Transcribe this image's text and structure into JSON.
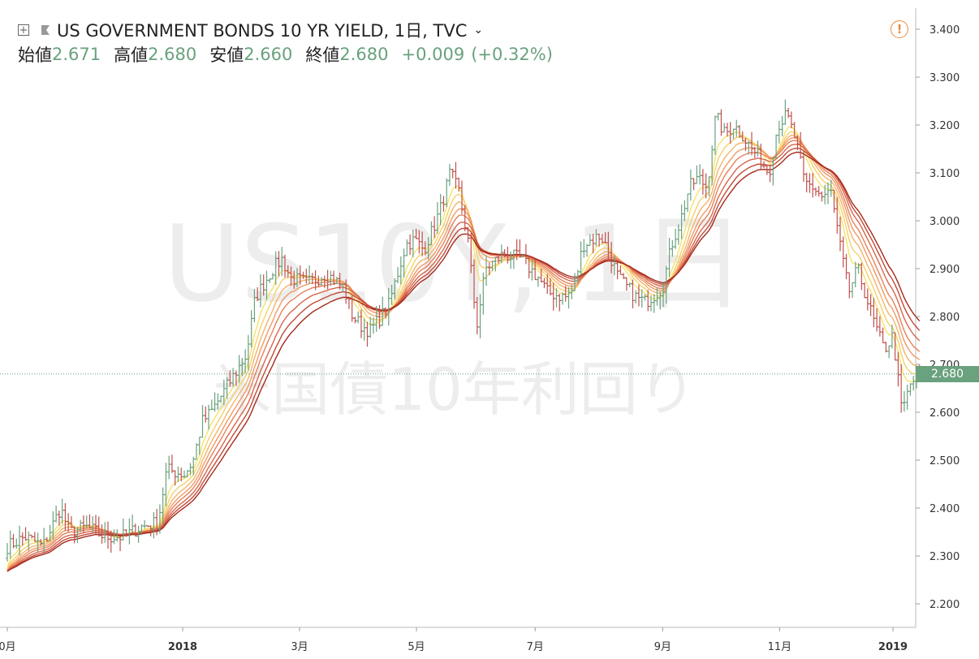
{
  "header": {
    "title": "US GOVERNMENT BONDS 10 YR YIELD, 1日, TVC",
    "open_label": "始値",
    "open_value": "2.671",
    "high_label": "高値",
    "high_value": "2.680",
    "low_label": "安値",
    "low_value": "2.660",
    "close_label": "終値",
    "close_value": "2.680",
    "change": "+0.009",
    "change_pct": "(+0.32%)"
  },
  "watermark": {
    "symbol": "US10Y, 1日",
    "name": "米国債10年利回り"
  },
  "last_price_badge": "2.680",
  "colors": {
    "up": "#6aa17e",
    "down": "#c0504d",
    "ribbon_light": "#f5e36a",
    "ribbon_dark": "#a52a1a"
  },
  "icons": [
    "expand-icon",
    "flag-icon",
    "chevron-down-icon",
    "warning-icon"
  ],
  "chart_data": {
    "type": "line",
    "title": "US GOVERNMENT BONDS 10 YR YIELD, 1日, TVC",
    "xlabel": "",
    "ylabel": "",
    "ylim": [
      2.175,
      3.43
    ],
    "y_ticks": [
      "3.400",
      "3.300",
      "3.200",
      "3.100",
      "3.000",
      "2.900",
      "2.800",
      "2.700",
      "2.600",
      "2.500",
      "2.400",
      "2.300",
      "2.200"
    ],
    "x_ticks": [
      {
        "label": "0月",
        "t": 0.0
      },
      {
        "label": "2018",
        "t": 0.198,
        "bold": true
      },
      {
        "label": "3月",
        "t": 0.33
      },
      {
        "label": "5月",
        "t": 0.462
      },
      {
        "label": "7月",
        "t": 0.596
      },
      {
        "label": "9月",
        "t": 0.74
      },
      {
        "label": "11月",
        "t": 0.872
      },
      {
        "label": "2019",
        "t": 1.0,
        "bold": true
      }
    ],
    "price_path": [
      [
        0.0,
        2.32
      ],
      [
        0.02,
        2.34
      ],
      [
        0.04,
        2.32
      ],
      [
        0.06,
        2.4
      ],
      [
        0.07,
        2.35
      ],
      [
        0.09,
        2.36
      ],
      [
        0.11,
        2.34
      ],
      [
        0.13,
        2.34
      ],
      [
        0.15,
        2.36
      ],
      [
        0.17,
        2.37
      ],
      [
        0.18,
        2.48
      ],
      [
        0.2,
        2.47
      ],
      [
        0.21,
        2.5
      ],
      [
        0.22,
        2.58
      ],
      [
        0.23,
        2.6
      ],
      [
        0.25,
        2.66
      ],
      [
        0.27,
        2.72
      ],
      [
        0.28,
        2.84
      ],
      [
        0.29,
        2.87
      ],
      [
        0.3,
        2.9
      ],
      [
        0.31,
        2.92
      ],
      [
        0.32,
        2.88
      ],
      [
        0.34,
        2.87
      ],
      [
        0.36,
        2.89
      ],
      [
        0.38,
        2.86
      ],
      [
        0.39,
        2.8
      ],
      [
        0.4,
        2.78
      ],
      [
        0.41,
        2.77
      ],
      [
        0.43,
        2.82
      ],
      [
        0.45,
        2.95
      ],
      [
        0.46,
        2.96
      ],
      [
        0.47,
        2.94
      ],
      [
        0.48,
        2.98
      ],
      [
        0.49,
        3.03
      ],
      [
        0.5,
        3.1
      ],
      [
        0.51,
        3.06
      ],
      [
        0.52,
        2.96
      ],
      [
        0.53,
        2.78
      ],
      [
        0.54,
        2.9
      ],
      [
        0.56,
        2.93
      ],
      [
        0.58,
        2.92
      ],
      [
        0.6,
        2.88
      ],
      [
        0.61,
        2.85
      ],
      [
        0.63,
        2.84
      ],
      [
        0.64,
        2.86
      ],
      [
        0.65,
        2.95
      ],
      [
        0.67,
        2.97
      ],
      [
        0.68,
        2.93
      ],
      [
        0.69,
        2.88
      ],
      [
        0.71,
        2.84
      ],
      [
        0.72,
        2.83
      ],
      [
        0.74,
        2.86
      ],
      [
        0.75,
        2.95
      ],
      [
        0.76,
        3.0
      ],
      [
        0.77,
        3.07
      ],
      [
        0.78,
        3.09
      ],
      [
        0.79,
        3.07
      ],
      [
        0.8,
        3.22
      ],
      [
        0.81,
        3.18
      ],
      [
        0.82,
        3.2
      ],
      [
        0.83,
        3.18
      ],
      [
        0.84,
        3.15
      ],
      [
        0.85,
        3.13
      ],
      [
        0.86,
        3.1
      ],
      [
        0.87,
        3.2
      ],
      [
        0.88,
        3.22
      ],
      [
        0.89,
        3.17
      ],
      [
        0.9,
        3.08
      ],
      [
        0.91,
        3.07
      ],
      [
        0.92,
        3.05
      ],
      [
        0.93,
        3.06
      ],
      [
        0.94,
        2.95
      ],
      [
        0.95,
        2.85
      ],
      [
        0.96,
        2.9
      ],
      [
        0.97,
        2.84
      ],
      [
        0.98,
        2.78
      ],
      [
        0.99,
        2.73
      ],
      [
        1.0,
        2.76
      ],
      [
        1.01,
        2.6
      ],
      [
        1.02,
        2.66
      ],
      [
        1.03,
        2.68
      ]
    ],
    "last_value": 2.68
  }
}
